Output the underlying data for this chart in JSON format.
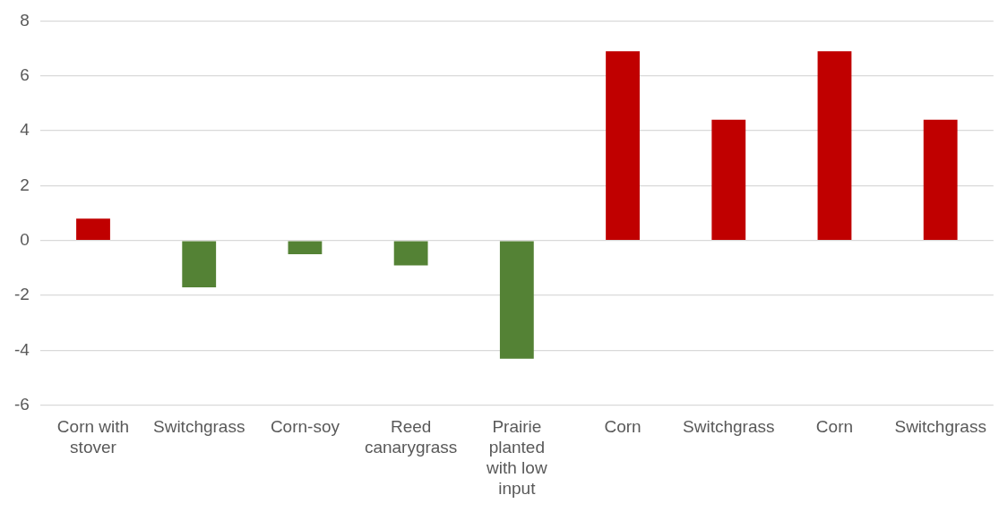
{
  "chart_data": {
    "type": "bar",
    "categories": [
      "Corn with stover",
      "Switchgrass",
      "Corn-soy",
      "Reed canarygrass",
      "Prairie planted with low input",
      "Corn",
      "Switchgrass",
      "Corn",
      "Switchgrass"
    ],
    "values": [
      0.8,
      -1.7,
      -0.5,
      -0.9,
      -4.3,
      6.9,
      4.4,
      6.9,
      4.4
    ],
    "colors": [
      "#c00000",
      "#548235",
      "#548235",
      "#548235",
      "#548235",
      "#c00000",
      "#c00000",
      "#c00000",
      "#c00000"
    ],
    "ylim": [
      -6,
      8
    ],
    "yticks": [
      -6,
      -4,
      -2,
      0,
      2,
      4,
      6,
      8
    ],
    "grid": "y",
    "legend": false
  }
}
